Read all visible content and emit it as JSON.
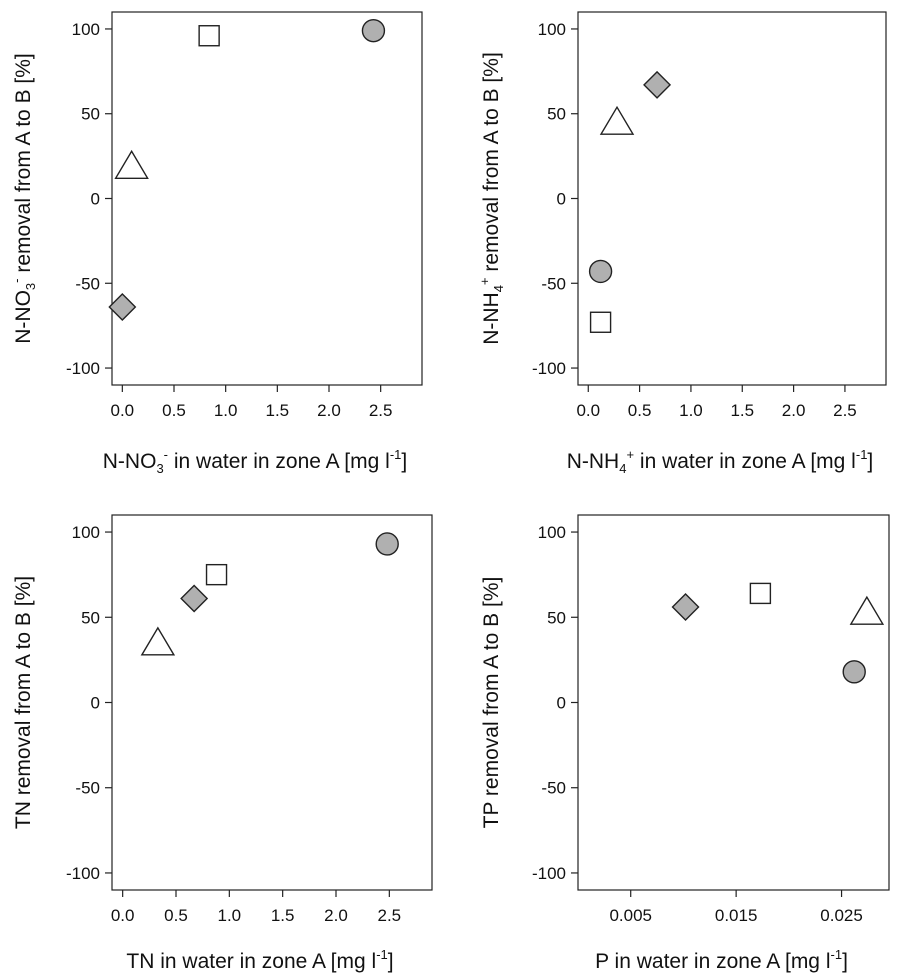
{
  "chart_data": [
    {
      "type": "scatter",
      "xlabel": {
        "pre": "N-NO",
        "sub": "3",
        "sup": "-",
        "post": " in water in zone A [mg l",
        "sup2": "-1",
        "end": "]"
      },
      "ylabel": {
        "pre": "N-NO",
        "sub": "3",
        "sup": "-",
        "post": "  removal from A to B [%]"
      },
      "xlim": [
        -0.1,
        2.9
      ],
      "ylim": [
        -110,
        110
      ],
      "xticks": [
        0.0,
        0.5,
        1.0,
        1.5,
        2.0,
        2.5
      ],
      "xtick_labels": [
        "0.0",
        "0.5",
        "1.0",
        "1.5",
        "2.0",
        "2.5"
      ],
      "yticks": [
        -100,
        -50,
        0,
        50,
        100
      ],
      "ytick_labels": [
        "-100",
        "-50",
        "0",
        "50",
        "100"
      ],
      "points": [
        {
          "x": 2.43,
          "y": 99,
          "marker": "circle"
        },
        {
          "x": 0.84,
          "y": 96,
          "marker": "square"
        },
        {
          "x": 0.09,
          "y": 19,
          "marker": "triangle"
        },
        {
          "x": 0.0,
          "y": -64,
          "marker": "diamond"
        }
      ]
    },
    {
      "type": "scatter",
      "xlabel": {
        "pre": "N-NH",
        "sub": "4",
        "sup": "+",
        "post": " in water in zone A [mg l",
        "sup2": "-1",
        "end": "]"
      },
      "ylabel": {
        "pre": "N-NH",
        "sub": "4",
        "sup": "+",
        "post": " removal from A to B [%]"
      },
      "xlim": [
        -0.1,
        2.9
      ],
      "ylim": [
        -110,
        110
      ],
      "xticks": [
        0.0,
        0.5,
        1.0,
        1.5,
        2.0,
        2.5
      ],
      "xtick_labels": [
        "0.0",
        "0.5",
        "1.0",
        "1.5",
        "2.0",
        "2.5"
      ],
      "yticks": [
        -100,
        -50,
        0,
        50,
        100
      ],
      "ytick_labels": [
        "-100",
        "-50",
        "0",
        "50",
        "100"
      ],
      "points": [
        {
          "x": 0.67,
          "y": 67,
          "marker": "diamond"
        },
        {
          "x": 0.28,
          "y": 45,
          "marker": "triangle"
        },
        {
          "x": 0.12,
          "y": -43,
          "marker": "circle"
        },
        {
          "x": 0.12,
          "y": -73,
          "marker": "square"
        }
      ]
    },
    {
      "type": "scatter",
      "xlabel": {
        "pre": "TN in water in zone A [mg l",
        "sup": "-1",
        "post": "]"
      },
      "ylabel": {
        "pre": "TN removal from A to B [%]"
      },
      "xlim": [
        -0.1,
        2.9
      ],
      "ylim": [
        -110,
        110
      ],
      "xticks": [
        0.0,
        0.5,
        1.0,
        1.5,
        2.0,
        2.5
      ],
      "xtick_labels": [
        "0.0",
        "0.5",
        "1.0",
        "1.5",
        "2.0",
        "2.5"
      ],
      "yticks": [
        -100,
        -50,
        0,
        50,
        100
      ],
      "ytick_labels": [
        "-100",
        "-50",
        "0",
        "50",
        "100"
      ],
      "points": [
        {
          "x": 2.48,
          "y": 93,
          "marker": "circle"
        },
        {
          "x": 0.88,
          "y": 75,
          "marker": "square"
        },
        {
          "x": 0.67,
          "y": 61,
          "marker": "diamond"
        },
        {
          "x": 0.33,
          "y": 35,
          "marker": "triangle"
        }
      ]
    },
    {
      "type": "scatter",
      "xlabel": {
        "pre": "P in water in zone A [mg l",
        "sup": "-1",
        "post": "]"
      },
      "ylabel": {
        "pre": "TP removal from A to B [%]"
      },
      "xlim": [
        0.0,
        0.0295
      ],
      "ylim": [
        -110,
        110
      ],
      "xticks": [
        0.005,
        0.015,
        0.025
      ],
      "xtick_labels": [
        "0.005",
        "0.015",
        "0.025"
      ],
      "yticks": [
        -100,
        -50,
        0,
        50,
        100
      ],
      "ytick_labels": [
        "-100",
        "-50",
        "0",
        "50",
        "100"
      ],
      "points": [
        {
          "x": 0.0173,
          "y": 64,
          "marker": "square"
        },
        {
          "x": 0.0102,
          "y": 56,
          "marker": "diamond"
        },
        {
          "x": 0.0274,
          "y": 53,
          "marker": "triangle"
        },
        {
          "x": 0.0262,
          "y": 18,
          "marker": "circle"
        }
      ]
    }
  ],
  "colors": {
    "filled_marker": "#b0b0b0",
    "open_marker": "#ffffff",
    "stroke": "#222222"
  }
}
